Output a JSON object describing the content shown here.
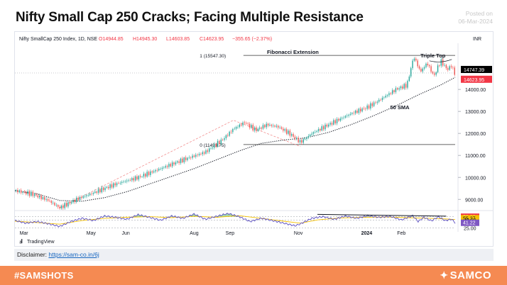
{
  "page": {
    "title": "Nifty Small Cap 250 Cracks; Facing Multiple Resistance",
    "posted_label": "Posted on",
    "posted_date": "06-Mar-2024",
    "disclaimer_label": "Disclaimer:",
    "disclaimer_link": "https://sam-co.in/6j",
    "hashtag": "#SAMSHOTS",
    "brand": "SAMCO",
    "tradingview_label": "TradingView"
  },
  "chart_data": [
    {
      "type": "candlestick",
      "header": {
        "symbol": "Nifty SmallCap 250 Index, 1D, NSE",
        "open": "O14944.85",
        "high": "H14945.30",
        "low": "L14603.85",
        "close": "C14623.95",
        "change": "−355.65 (−2.37%)"
      },
      "currency": "INR",
      "ylim": [
        8300,
        16100
      ],
      "y_ticks": [
        9000,
        10000,
        11000,
        12000,
        13000,
        14000
      ],
      "y_tick_labels": [
        "9000.00",
        "10000.00",
        "11000.00",
        "12000.00",
        "13000.00",
        "14000.00"
      ],
      "x_labels": [
        {
          "label": "Mar",
          "d": 8
        },
        {
          "label": "May",
          "d": 68
        },
        {
          "label": "Jun",
          "d": 99
        },
        {
          "label": "Aug",
          "d": 160
        },
        {
          "label": "Sep",
          "d": 192
        },
        {
          "label": "Nov",
          "d": 253
        },
        {
          "label": "2024",
          "d": 314
        },
        {
          "label": "Feb",
          "d": 345
        }
      ],
      "price_labels": [
        {
          "value": 14747.39,
          "text": "14747.39",
          "color": "#000000"
        },
        {
          "value": 14623.95,
          "text": "14623.95",
          "color": "#f23645"
        }
      ],
      "price_path": [
        [
          0,
          9400
        ],
        [
          15,
          9250
        ],
        [
          30,
          8950
        ],
        [
          40,
          8620
        ],
        [
          55,
          9000
        ],
        [
          70,
          9300
        ],
        [
          90,
          9700
        ],
        [
          110,
          10000
        ],
        [
          130,
          10400
        ],
        [
          150,
          10800
        ],
        [
          170,
          11150
        ],
        [
          185,
          11700
        ],
        [
          195,
          12200
        ],
        [
          205,
          12500
        ],
        [
          215,
          12150
        ],
        [
          225,
          12400
        ],
        [
          235,
          12300
        ],
        [
          245,
          12000
        ],
        [
          255,
          11600
        ],
        [
          265,
          12000
        ],
        [
          280,
          12400
        ],
        [
          300,
          12900
        ],
        [
          315,
          13200
        ],
        [
          325,
          13500
        ],
        [
          340,
          14000
        ],
        [
          350,
          14200
        ],
        [
          356,
          15500
        ],
        [
          362,
          14800
        ],
        [
          368,
          15200
        ],
        [
          374,
          14600
        ],
        [
          380,
          15300
        ],
        [
          386,
          14900
        ],
        [
          390,
          15100
        ],
        [
          393,
          14624
        ]
      ],
      "sma50_path": [
        [
          0,
          9400
        ],
        [
          20,
          9250
        ],
        [
          40,
          8950
        ],
        [
          60,
          8920
        ],
        [
          80,
          9080
        ],
        [
          100,
          9350
        ],
        [
          120,
          9700
        ],
        [
          140,
          10050
        ],
        [
          160,
          10400
        ],
        [
          180,
          10800
        ],
        [
          200,
          11200
        ],
        [
          220,
          11550
        ],
        [
          240,
          11700
        ],
        [
          260,
          11800
        ],
        [
          280,
          12050
        ],
        [
          300,
          12400
        ],
        [
          320,
          12800
        ],
        [
          340,
          13250
        ],
        [
          360,
          13750
        ],
        [
          380,
          14200
        ],
        [
          393,
          14550
        ]
      ],
      "annotations": {
        "fib_extension_label": "Fibonacci Extension",
        "fib_1_label": "1 (15547.30)",
        "fib_1_value": 15547.3,
        "fib_0_label": "0 (11493.75)",
        "fib_0_value": 11493.75,
        "sma_label": "50 SMA",
        "triple_top_label": "Triple Top"
      }
    },
    {
      "type": "line",
      "name": "rsi",
      "ylim": [
        20,
        70
      ],
      "y_labels": [
        {
          "value": 59.9,
          "text": "59.90",
          "color": "#f23645"
        },
        {
          "value": 55.27,
          "text": "55.27",
          "color": "#f5c000"
        },
        {
          "value": 49.9,
          "text": "49.90",
          "color": "#131722"
        },
        {
          "value": 41.22,
          "text": "41.22",
          "color": "#7e57c2"
        },
        {
          "value": 25.0,
          "text": "25.00",
          "color": "#131722"
        }
      ],
      "levels": [
        59.9,
        49.9,
        25.0
      ],
      "rsi_path": [
        [
          0,
          48
        ],
        [
          10,
          40
        ],
        [
          20,
          45
        ],
        [
          30,
          38
        ],
        [
          40,
          30
        ],
        [
          50,
          45
        ],
        [
          60,
          55
        ],
        [
          70,
          48
        ],
        [
          80,
          62
        ],
        [
          90,
          58
        ],
        [
          100,
          52
        ],
        [
          110,
          66
        ],
        [
          120,
          58
        ],
        [
          130,
          49
        ],
        [
          140,
          62
        ],
        [
          150,
          55
        ],
        [
          160,
          68
        ],
        [
          170,
          52
        ],
        [
          180,
          61
        ],
        [
          190,
          70
        ],
        [
          200,
          60
        ],
        [
          210,
          45
        ],
        [
          220,
          55
        ],
        [
          230,
          48
        ],
        [
          240,
          40
        ],
        [
          250,
          32
        ],
        [
          255,
          38
        ],
        [
          265,
          55
        ],
        [
          275,
          60
        ],
        [
          285,
          52
        ],
        [
          295,
          62
        ],
        [
          305,
          55
        ],
        [
          315,
          63
        ],
        [
          325,
          58
        ],
        [
          335,
          61
        ],
        [
          345,
          50
        ],
        [
          355,
          63
        ],
        [
          360,
          45
        ],
        [
          365,
          58
        ],
        [
          372,
          47
        ],
        [
          378,
          60
        ],
        [
          384,
          48
        ],
        [
          390,
          52
        ],
        [
          393,
          41
        ]
      ],
      "signal_path": [
        [
          0,
          46
        ],
        [
          20,
          42
        ],
        [
          40,
          37
        ],
        [
          60,
          48
        ],
        [
          80,
          55
        ],
        [
          100,
          58
        ],
        [
          120,
          60
        ],
        [
          140,
          57
        ],
        [
          160,
          61
        ],
        [
          180,
          58
        ],
        [
          200,
          63
        ],
        [
          220,
          55
        ],
        [
          240,
          46
        ],
        [
          255,
          40
        ],
        [
          270,
          50
        ],
        [
          290,
          56
        ],
        [
          310,
          58
        ],
        [
          330,
          59
        ],
        [
          350,
          57
        ],
        [
          370,
          55
        ],
        [
          385,
          53
        ],
        [
          393,
          51
        ]
      ],
      "divergence_line": [
        [
          270,
          67
        ],
        [
          385,
          61.5
        ]
      ]
    }
  ]
}
